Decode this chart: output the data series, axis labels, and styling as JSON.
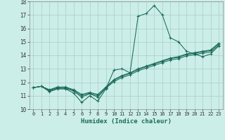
{
  "xlabel": "Humidex (Indice chaleur)",
  "bg_color": "#cceee8",
  "grid_color": "#aacccc",
  "line_color": "#1a6b5a",
  "xlim_min": -0.5,
  "xlim_max": 23.5,
  "ylim_min": 10,
  "ylim_max": 18,
  "xticks": [
    0,
    1,
    2,
    3,
    4,
    5,
    6,
    7,
    8,
    9,
    10,
    11,
    12,
    13,
    14,
    15,
    16,
    17,
    18,
    19,
    20,
    21,
    22,
    23
  ],
  "yticks": [
    10,
    11,
    12,
    13,
    14,
    15,
    16,
    17,
    18
  ],
  "series": [
    [
      11.6,
      11.7,
      11.3,
      11.5,
      11.5,
      11.2,
      10.5,
      11.0,
      10.6,
      11.5,
      12.9,
      13.0,
      12.7,
      16.9,
      17.1,
      17.7,
      17.0,
      15.3,
      15.0,
      14.3,
      14.1,
      13.9,
      14.1,
      14.7
    ],
    [
      11.6,
      11.7,
      11.35,
      11.55,
      11.55,
      11.35,
      10.9,
      11.15,
      10.9,
      11.55,
      12.05,
      12.35,
      12.55,
      12.85,
      13.05,
      13.25,
      13.45,
      13.65,
      13.75,
      13.95,
      14.05,
      14.15,
      14.25,
      14.75
    ],
    [
      11.6,
      11.7,
      11.4,
      11.6,
      11.6,
      11.4,
      11.0,
      11.2,
      11.0,
      11.6,
      12.15,
      12.45,
      12.65,
      12.95,
      13.15,
      13.35,
      13.55,
      13.75,
      13.85,
      14.05,
      14.15,
      14.25,
      14.35,
      14.85
    ],
    [
      11.6,
      11.7,
      11.45,
      11.65,
      11.65,
      11.45,
      11.1,
      11.25,
      11.1,
      11.65,
      12.2,
      12.5,
      12.7,
      13.0,
      13.2,
      13.4,
      13.6,
      13.8,
      13.9,
      14.1,
      14.2,
      14.3,
      14.4,
      14.9
    ]
  ]
}
